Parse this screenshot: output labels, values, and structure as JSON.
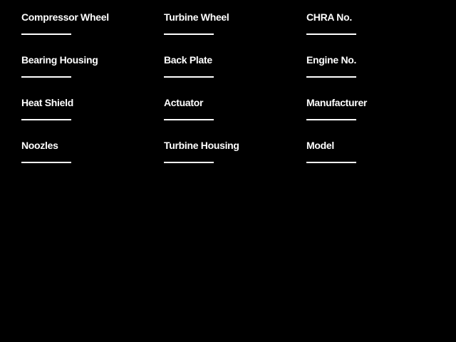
{
  "page": {
    "background_color": "#000000",
    "text_color": "#ffffff",
    "entry_line_color": "#ffffff"
  },
  "form": {
    "columns": [
      {
        "fields": [
          {
            "label": "Compressor Wheel",
            "value": ""
          },
          {
            "label": "Bearing Housing",
            "value": ""
          },
          {
            "label": "Heat Shield",
            "value": ""
          },
          {
            "label": "Noozles",
            "value": ""
          }
        ]
      },
      {
        "fields": [
          {
            "label": "Turbine Wheel",
            "value": ""
          },
          {
            "label": "Back Plate",
            "value": ""
          },
          {
            "label": "Actuator",
            "value": ""
          },
          {
            "label": "Turbine Housing",
            "value": ""
          }
        ]
      },
      {
        "fields": [
          {
            "label": "CHRA No.",
            "value": ""
          },
          {
            "label": "Engine No.",
            "value": ""
          },
          {
            "label": "Manufacturer",
            "value": ""
          },
          {
            "label": "Model",
            "value": ""
          }
        ]
      }
    ]
  }
}
